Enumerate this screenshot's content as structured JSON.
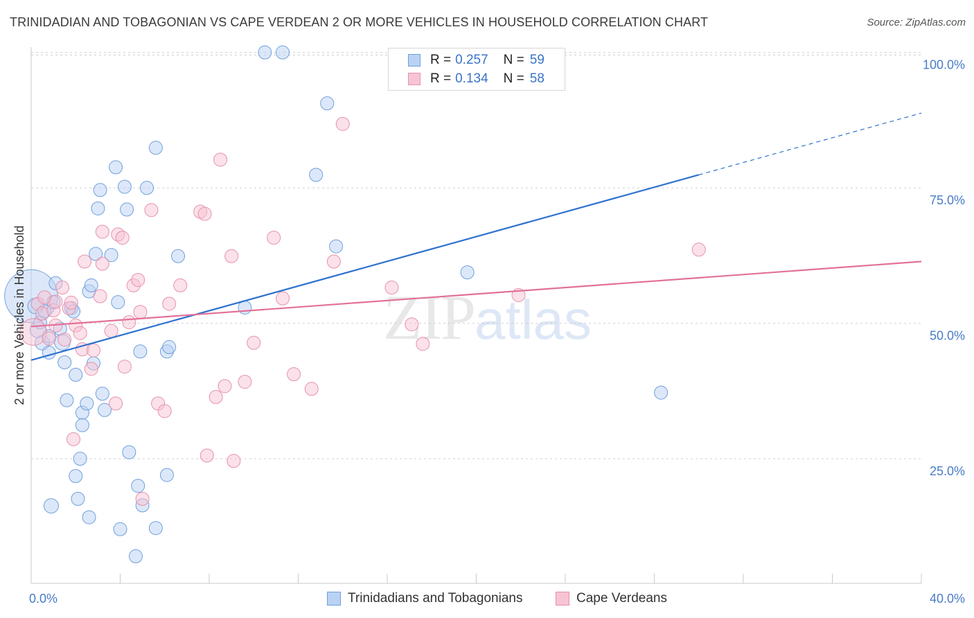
{
  "title": "TRINIDADIAN AND TOBAGONIAN VS CAPE VERDEAN 2 OR MORE VEHICLES IN HOUSEHOLD CORRELATION CHART",
  "source": "Source: ZipAtlas.com",
  "watermark": {
    "zip": "ZIP",
    "atlas": "atlas"
  },
  "legend": {
    "r_label": "R =",
    "n_label": "N =",
    "rows": [
      {
        "r": "0.257",
        "n": "59"
      },
      {
        "r": "0.134",
        "n": "58"
      }
    ]
  },
  "colors": {
    "blue_fill": "#b9d2f3",
    "blue_stroke": "#6f9fdc",
    "blue_line": "#2f72cf",
    "pink_fill": "#f7c4d3",
    "pink_stroke": "#e592ad",
    "pink_line": "#e2709a",
    "tick_text": "#4a7cc7",
    "grid": "#d0d0d0"
  },
  "chart_data": {
    "type": "scatter",
    "title": "TRINIDADIAN AND TOBAGONIAN VS CAPE VERDEAN 2 OR MORE VEHICLES IN HOUSEHOLD CORRELATION CHART",
    "xlabel": "",
    "ylabel": "2 or more Vehicles in Household",
    "xlim": [
      0,
      40
    ],
    "ylim": [
      2,
      102
    ],
    "x_tick_labels": [
      "0.0%",
      "40.0%"
    ],
    "y_ticks": [
      25,
      50,
      75,
      100
    ],
    "y_tick_labels": [
      "25.0%",
      "50.0%",
      "75.0%",
      "100.0%"
    ],
    "series": [
      {
        "name": "Trinidadians and Tobagonians",
        "color": "blue",
        "trend": {
          "x0": 0,
          "y0": 43.2,
          "x1": 30,
          "y1": 77.4,
          "dash_x1": 40,
          "dash_y1": 88.8
        },
        "points": [
          [
            0.0,
            55.0,
            34
          ],
          [
            0.2,
            53.2,
            12
          ],
          [
            0.3,
            48.8,
            12
          ],
          [
            0.4,
            50.2,
            10
          ],
          [
            0.5,
            46.4,
            11
          ],
          [
            0.6,
            52.2,
            10
          ],
          [
            0.8,
            47.6,
            10
          ],
          [
            0.8,
            44.6,
            10
          ],
          [
            1.0,
            53.9,
            10
          ],
          [
            1.1,
            57.4,
            10
          ],
          [
            1.3,
            49.0,
            10
          ],
          [
            1.4,
            46.5,
            12
          ],
          [
            1.5,
            42.8,
            10
          ],
          [
            1.6,
            35.8,
            10
          ],
          [
            1.8,
            52.8,
            10
          ],
          [
            1.9,
            52.2,
            10
          ],
          [
            2.0,
            21.8,
            10
          ],
          [
            2.0,
            40.5,
            10
          ],
          [
            2.1,
            17.6,
            10
          ],
          [
            2.2,
            25.0,
            10
          ],
          [
            2.3,
            33.5,
            10
          ],
          [
            2.3,
            31.2,
            10
          ],
          [
            2.5,
            35.2,
            10
          ],
          [
            2.6,
            14.2,
            10
          ],
          [
            2.6,
            55.9,
            10
          ],
          [
            2.7,
            57.0,
            10
          ],
          [
            2.8,
            42.6,
            10
          ],
          [
            2.9,
            62.8,
            10
          ],
          [
            3.0,
            71.2,
            10
          ],
          [
            3.1,
            74.6,
            10
          ],
          [
            3.2,
            37.0,
            10
          ],
          [
            3.3,
            34.0,
            10
          ],
          [
            3.6,
            62.6,
            10
          ],
          [
            3.8,
            78.8,
            10
          ],
          [
            3.9,
            53.9,
            10
          ],
          [
            4.0,
            12.0,
            10
          ],
          [
            4.2,
            75.2,
            10
          ],
          [
            4.3,
            71.0,
            10
          ],
          [
            4.4,
            26.2,
            10
          ],
          [
            4.7,
            7.0,
            10
          ],
          [
            4.8,
            20.0,
            10
          ],
          [
            5.0,
            16.4,
            10
          ],
          [
            5.2,
            75.0,
            10
          ],
          [
            5.6,
            12.2,
            10
          ],
          [
            5.6,
            82.4,
            10
          ],
          [
            6.1,
            44.8,
            10
          ],
          [
            6.1,
            22.0,
            10
          ],
          [
            6.2,
            45.6,
            10
          ],
          [
            6.6,
            62.4,
            10
          ],
          [
            0.9,
            16.3,
            11
          ],
          [
            4.9,
            44.8,
            10
          ],
          [
            9.6,
            52.9,
            10
          ],
          [
            10.5,
            100.0,
            10
          ],
          [
            11.3,
            100.0,
            10
          ],
          [
            12.8,
            77.4,
            10
          ],
          [
            13.3,
            90.6,
            10
          ],
          [
            13.7,
            64.2,
            10
          ],
          [
            19.6,
            59.4,
            10
          ],
          [
            28.3,
            37.2,
            10
          ]
        ]
      },
      {
        "name": "Cape Verdeans",
        "color": "pink",
        "trend": {
          "x0": 0,
          "y0": 49.4,
          "x1": 40,
          "y1": 61.4
        },
        "points": [
          [
            0.1,
            48.4,
            14
          ],
          [
            0.3,
            53.6,
            10
          ],
          [
            0.5,
            51.8,
            10
          ],
          [
            0.6,
            54.8,
            10
          ],
          [
            0.8,
            47.2,
            10
          ],
          [
            1.0,
            52.4,
            10
          ],
          [
            1.1,
            49.6,
            10
          ],
          [
            1.1,
            54.0,
            10
          ],
          [
            1.4,
            56.6,
            10
          ],
          [
            1.5,
            47.0,
            10
          ],
          [
            1.7,
            52.8,
            10
          ],
          [
            1.8,
            53.8,
            10
          ],
          [
            1.9,
            28.6,
            10
          ],
          [
            2.0,
            49.6,
            10
          ],
          [
            2.2,
            48.2,
            10
          ],
          [
            2.3,
            45.2,
            10
          ],
          [
            2.4,
            61.4,
            10
          ],
          [
            2.7,
            41.6,
            10
          ],
          [
            2.8,
            45.0,
            10
          ],
          [
            3.1,
            55.0,
            10
          ],
          [
            3.2,
            66.9,
            10
          ],
          [
            3.2,
            61.0,
            10
          ],
          [
            3.6,
            48.6,
            10
          ],
          [
            3.8,
            35.2,
            10
          ],
          [
            3.9,
            66.4,
            10
          ],
          [
            4.1,
            65.8,
            10
          ],
          [
            4.2,
            42.0,
            10
          ],
          [
            4.4,
            50.2,
            10
          ],
          [
            4.6,
            57.0,
            10
          ],
          [
            4.8,
            58.0,
            10
          ],
          [
            4.9,
            52.1,
            10
          ],
          [
            5.0,
            17.6,
            10
          ],
          [
            5.4,
            70.9,
            10
          ],
          [
            5.7,
            35.2,
            10
          ],
          [
            6.0,
            33.8,
            10
          ],
          [
            6.2,
            53.6,
            10
          ],
          [
            6.7,
            57.0,
            10
          ],
          [
            7.6,
            70.6,
            10
          ],
          [
            7.8,
            70.2,
            10
          ],
          [
            7.9,
            25.6,
            10
          ],
          [
            8.3,
            36.4,
            10
          ],
          [
            8.5,
            80.2,
            10
          ],
          [
            8.7,
            38.4,
            10
          ],
          [
            9.0,
            62.4,
            10
          ],
          [
            9.1,
            24.6,
            10
          ],
          [
            9.6,
            39.2,
            10
          ],
          [
            10.0,
            46.4,
            10
          ],
          [
            10.9,
            65.8,
            10
          ],
          [
            11.3,
            54.6,
            10
          ],
          [
            11.8,
            40.6,
            10
          ],
          [
            12.6,
            37.9,
            10
          ],
          [
            13.6,
            61.4,
            10
          ],
          [
            14.0,
            86.8,
            10
          ],
          [
            16.2,
            56.6,
            10
          ],
          [
            17.1,
            49.8,
            10
          ],
          [
            17.6,
            46.2,
            10
          ],
          [
            21.9,
            55.2,
            10
          ],
          [
            30.0,
            63.6,
            10
          ]
        ]
      }
    ]
  }
}
